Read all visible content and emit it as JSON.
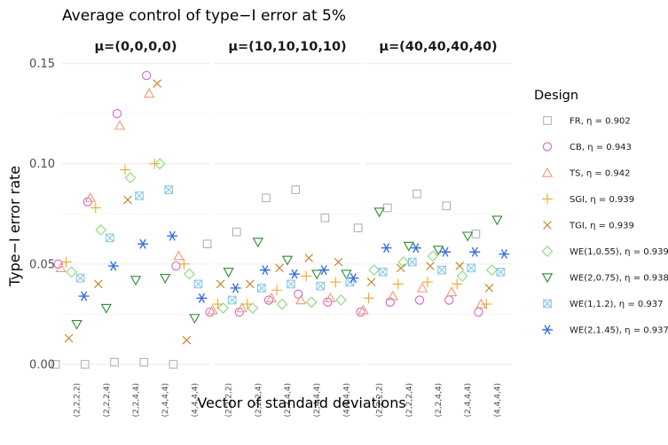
{
  "chart_data": {
    "type": "scatter",
    "title": "Average control of type−I error at 5%",
    "xlabel": "Vector of standard deviations",
    "ylabel": "Type−I error rate",
    "ylim": [
      -0.004,
      0.156
    ],
    "yticks": [
      0.0,
      0.05,
      0.1,
      0.15
    ],
    "ytick_labels": [
      "0.00",
      "0.05",
      "0.10",
      "0.15"
    ],
    "categories": [
      "(2,2,2,2)",
      "(2,2,2,4)",
      "(2,2,4,4)",
      "(2,4,4,4)",
      "(4,4,4,4)"
    ],
    "panels": [
      "μ=(0,0,0,0)",
      "μ=(10,10,10,10)",
      "μ=(40,40,40,40)"
    ],
    "legend_title": "Design",
    "legend_position": "right",
    "series": [
      {
        "name": "FR, η = 0.902",
        "symbol": "square",
        "color": "#b3b3b3",
        "values": [
          [
            0.0,
            0.0,
            0.001,
            0.001,
            0.0
          ],
          [
            0.06,
            0.066,
            0.083,
            0.087,
            0.073
          ],
          [
            0.068,
            0.078,
            0.085,
            0.079,
            0.065
          ]
        ]
      },
      {
        "name": "CB, η = 0.943",
        "symbol": "circle",
        "color": "#d066cf",
        "values": [
          [
            0.05,
            0.081,
            0.125,
            0.144,
            0.049
          ],
          [
            0.026,
            0.026,
            0.032,
            0.035,
            0.031
          ],
          [
            0.026,
            0.031,
            0.032,
            0.032,
            0.026
          ]
        ]
      },
      {
        "name": "TS, η = 0.942",
        "symbol": "triangle",
        "color": "#f2967c",
        "values": [
          [
            0.048,
            0.083,
            0.119,
            0.135,
            0.054
          ],
          [
            0.027,
            0.028,
            0.033,
            0.032,
            0.033
          ],
          [
            0.027,
            0.034,
            0.038,
            0.036,
            0.03
          ]
        ]
      },
      {
        "name": "SGI, η = 0.939",
        "symbol": "plus",
        "color": "#f5a623",
        "values": [
          [
            0.051,
            0.078,
            0.097,
            0.1,
            0.05
          ],
          [
            0.03,
            0.03,
            0.037,
            0.044,
            0.041
          ],
          [
            0.033,
            0.04,
            0.041,
            0.04,
            0.03
          ]
        ]
      },
      {
        "name": "TGI, η = 0.939",
        "symbol": "cross",
        "color": "#c97e20",
        "values": [
          [
            0.013,
            0.04,
            0.082,
            0.14,
            0.012
          ],
          [
            0.04,
            0.04,
            0.048,
            0.053,
            0.051
          ],
          [
            0.041,
            0.048,
            0.049,
            0.049,
            0.038
          ]
        ]
      },
      {
        "name": "WE(1,0.55), η = 0.939",
        "symbol": "diamond",
        "color": "#88d97f",
        "values": [
          [
            0.046,
            0.067,
            0.093,
            0.1,
            0.045
          ],
          [
            0.028,
            0.028,
            0.03,
            0.031,
            0.032
          ],
          [
            0.047,
            0.051,
            0.054,
            0.044,
            0.047
          ]
        ]
      },
      {
        "name": "WE(2,0.75), η = 0.938",
        "symbol": "triangle-down",
        "color": "#2f8a34",
        "values": [
          [
            0.02,
            0.028,
            0.042,
            0.043,
            0.023
          ],
          [
            0.046,
            0.061,
            0.052,
            0.045,
            0.045
          ],
          [
            0.076,
            0.059,
            0.057,
            0.064,
            0.072
          ]
        ]
      },
      {
        "name": "WE(1,1.2), η = 0.937",
        "symbol": "square-cross",
        "color": "#8cc8e6",
        "values": [
          [
            0.043,
            0.063,
            0.084,
            0.087,
            0.04
          ],
          [
            0.032,
            0.038,
            0.04,
            0.039,
            0.041
          ],
          [
            0.046,
            0.051,
            0.047,
            0.048,
            0.046
          ]
        ]
      },
      {
        "name": "WE(2,1.45), η = 0.937",
        "symbol": "asterisk",
        "color": "#3a6fe0",
        "values": [
          [
            0.034,
            0.049,
            0.06,
            0.064,
            0.033
          ],
          [
            0.038,
            0.047,
            0.045,
            0.047,
            0.043
          ],
          [
            0.058,
            0.058,
            0.056,
            0.056,
            0.055
          ]
        ]
      }
    ]
  }
}
